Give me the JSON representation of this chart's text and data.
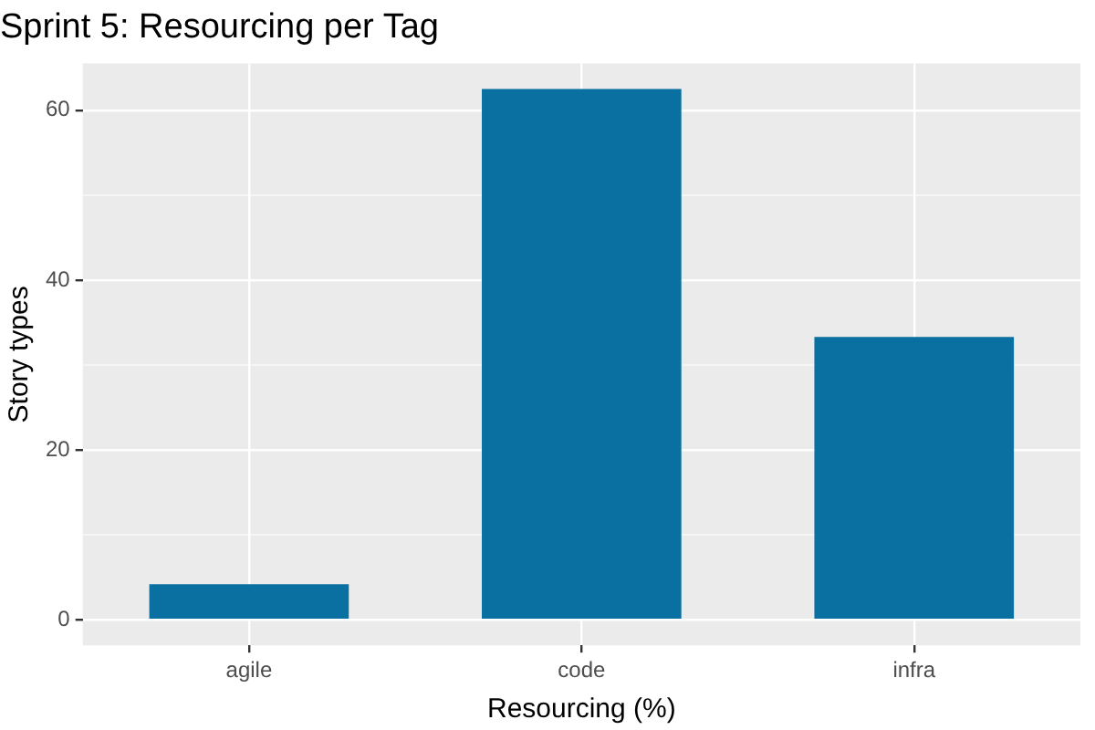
{
  "chart_data": {
    "type": "bar",
    "title": "Sprint 5: Resourcing per Tag",
    "xlabel": "Resourcing (%)",
    "ylabel": "Story types",
    "categories": [
      "agile",
      "code",
      "infra"
    ],
    "values": [
      4.2,
      62.5,
      33.3
    ],
    "color": "#0a6fa1",
    "ylim": [
      -3,
      65.5
    ],
    "yticks": [
      0,
      {
        "value": 10,
        "label": null
      },
      20,
      {
        "value": 30,
        "label": null
      },
      40,
      {
        "value": 50,
        "label": null
      },
      60
    ],
    "grid": true,
    "legend": false
  }
}
